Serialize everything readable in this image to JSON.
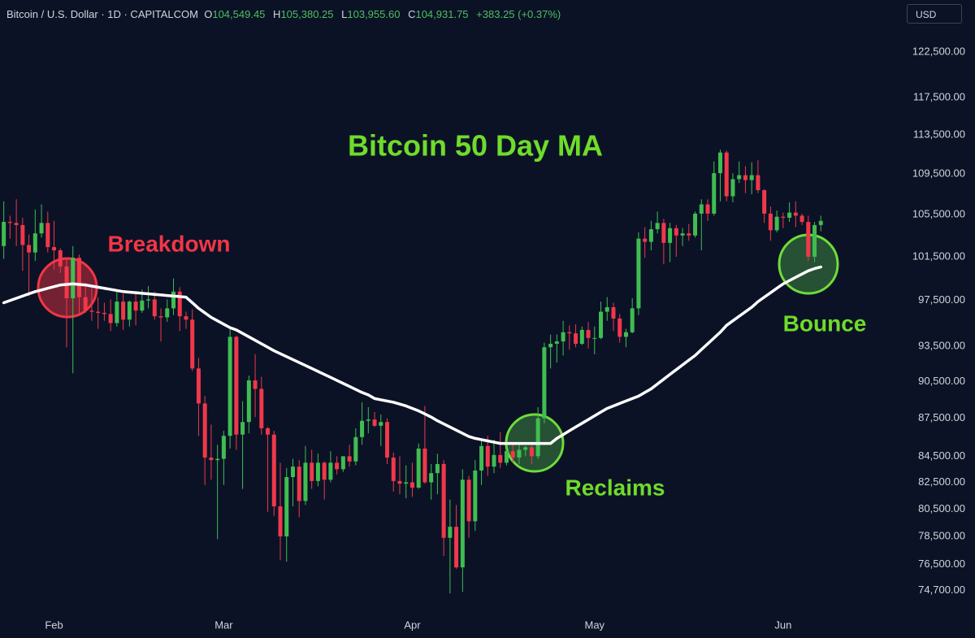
{
  "header": {
    "symbol": "Bitcoin / U.S. Dollar · 1D · CAPITALCOM",
    "ohlc": [
      {
        "key": "O",
        "value": "104,549.45"
      },
      {
        "key": "H",
        "value": "105,380.25"
      },
      {
        "key": "L",
        "value": "103,955.60"
      },
      {
        "key": "C",
        "value": "104,931.75"
      }
    ],
    "change": "+383.25 (+0.37%)",
    "currency": "USD"
  },
  "chart_data": {
    "type": "candlestick",
    "title": "Bitcoin 50 Day MA",
    "annotations": [
      "Breakdown",
      "Reclaims",
      "Bounce"
    ],
    "up_color": "#3fbd51",
    "down_color": "#f0384a",
    "ma_color": "#ffffff",
    "log_y": true,
    "ylim": [
      73400,
      128500
    ],
    "yticks": [
      {
        "value": 122500,
        "label": "122,500.00"
      },
      {
        "value": 117500,
        "label": "117,500.00"
      },
      {
        "value": 113500,
        "label": "113,500.00"
      },
      {
        "value": 109500,
        "label": "109,500.00"
      },
      {
        "value": 105500,
        "label": "105,500.00"
      },
      {
        "value": 101500,
        "label": "101,500.00"
      },
      {
        "value": 97500,
        "label": "97,500.00"
      },
      {
        "value": 93500,
        "label": "93,500.00"
      },
      {
        "value": 90500,
        "label": "90,500.00"
      },
      {
        "value": 87500,
        "label": "87,500.00"
      },
      {
        "value": 84500,
        "label": "84,500.00"
      },
      {
        "value": 82500,
        "label": "82,500.00"
      },
      {
        "value": 80500,
        "label": "80,500.00"
      },
      {
        "value": 78500,
        "label": "78,500.00"
      },
      {
        "value": 76500,
        "label": "76,500.00"
      },
      {
        "value": 74700,
        "label": "74,700.00"
      }
    ],
    "xlim": [
      -0.6,
      141.6
    ],
    "xticks": [
      {
        "value": 8,
        "label": "Feb"
      },
      {
        "value": 35,
        "label": "Mar"
      },
      {
        "value": 65,
        "label": "Apr"
      },
      {
        "value": 94,
        "label": "May"
      },
      {
        "value": 124,
        "label": "Jun"
      }
    ],
    "ohlc": [
      [
        102500,
        106800,
        101300,
        104800
      ],
      [
        104800,
        105400,
        103200,
        104700
      ],
      [
        104700,
        107000,
        102500,
        104500
      ],
      [
        104500,
        105200,
        100200,
        102600
      ],
      [
        102600,
        103600,
        97900,
        101900
      ],
      [
        101900,
        106000,
        101100,
        103700
      ],
      [
        103700,
        106500,
        103300,
        104700
      ],
      [
        104700,
        105800,
        101900,
        102400
      ],
      [
        102400,
        104900,
        100300,
        102100
      ],
      [
        102100,
        102300,
        100000,
        100600
      ],
      [
        100600,
        101400,
        93400,
        97700
      ],
      [
        97700,
        102500,
        91200,
        101400
      ],
      [
        101400,
        101700,
        96200,
        97800
      ],
      [
        97800,
        99100,
        96400,
        96600
      ],
      [
        96600,
        98800,
        95700,
        96500
      ],
      [
        96500,
        97800,
        95000,
        96400
      ],
      [
        96400,
        97300,
        95700,
        96300
      ],
      [
        96300,
        97600,
        94800,
        95500
      ],
      [
        95500,
        98500,
        95200,
        97400
      ],
      [
        97400,
        98100,
        94900,
        95800
      ],
      [
        95800,
        97500,
        95200,
        97400
      ],
      [
        97400,
        98100,
        95300,
        96600
      ],
      [
        96600,
        98500,
        96400,
        97500
      ],
      [
        97500,
        98800,
        96800,
        97600
      ],
      [
        97600,
        98300,
        95800,
        96100
      ],
      [
        96100,
        96800,
        93900,
        96000
      ],
      [
        96000,
        97600,
        95600,
        96800
      ],
      [
        96800,
        99500,
        96200,
        98300
      ],
      [
        98300,
        98700,
        94800,
        96100
      ],
      [
        96100,
        96500,
        95000,
        95800
      ],
      [
        95800,
        96700,
        91400,
        91600
      ],
      [
        91600,
        92500,
        86100,
        88700
      ],
      [
        88700,
        89300,
        82300,
        84400
      ],
      [
        84400,
        87000,
        82700,
        84200
      ],
      [
        84200,
        85400,
        78300,
        84300
      ],
      [
        84300,
        86500,
        82300,
        86100
      ],
      [
        86100,
        95000,
        85100,
        94300
      ],
      [
        94300,
        94400,
        85000,
        86200
      ],
      [
        86200,
        88900,
        82000,
        87200
      ],
      [
        87200,
        91000,
        86300,
        90600
      ],
      [
        90600,
        92800,
        87600,
        89900
      ],
      [
        89900,
        90900,
        86200,
        86700
      ],
      [
        86700,
        86800,
        80300,
        86200
      ],
      [
        86200,
        86500,
        80000,
        80700
      ],
      [
        80700,
        84000,
        76800,
        78500
      ],
      [
        78500,
        83600,
        76700,
        82900
      ],
      [
        82900,
        84300,
        80700,
        83700
      ],
      [
        83700,
        84200,
        79900,
        81100
      ],
      [
        81100,
        85300,
        80800,
        84000
      ],
      [
        84000,
        85000,
        82000,
        82600
      ],
      [
        82600,
        84700,
        82200,
        84000
      ],
      [
        84000,
        84100,
        81200,
        82700
      ],
      [
        82700,
        84900,
        82500,
        84000
      ],
      [
        84000,
        84500,
        83100,
        83500
      ],
      [
        83500,
        84500,
        83300,
        84500
      ],
      [
        84500,
        85400,
        83700,
        84100
      ],
      [
        84100,
        86700,
        83800,
        86000
      ],
      [
        86000,
        88800,
        85400,
        87300
      ],
      [
        87300,
        88400,
        86300,
        87400
      ],
      [
        87400,
        88000,
        86800,
        86900
      ],
      [
        86900,
        87800,
        85300,
        87200
      ],
      [
        87200,
        87500,
        83900,
        84400
      ],
      [
        84400,
        84800,
        81800,
        82600
      ],
      [
        82600,
        84500,
        81600,
        82400
      ],
      [
        82400,
        83800,
        81300,
        82500
      ],
      [
        82500,
        84000,
        81400,
        82100
      ],
      [
        82100,
        85500,
        82000,
        85100
      ],
      [
        85100,
        88500,
        82400,
        82500
      ],
      [
        82500,
        83900,
        81200,
        83200
      ],
      [
        83200,
        84700,
        81600,
        83900
      ],
      [
        83900,
        84200,
        77100,
        78400
      ],
      [
        78400,
        81200,
        74500,
        79200
      ],
      [
        79200,
        80800,
        76200,
        76300
      ],
      [
        76300,
        83500,
        74600,
        82700
      ],
      [
        82700,
        83000,
        78400,
        79600
      ],
      [
        79600,
        84200,
        78900,
        83400
      ],
      [
        83400,
        85800,
        82300,
        85300
      ],
      [
        85300,
        86100,
        83000,
        83700
      ],
      [
        83700,
        85800,
        83200,
        84600
      ],
      [
        84600,
        86400,
        83600,
        84000
      ],
      [
        84000,
        85400,
        83800,
        84900
      ],
      [
        84900,
        85500,
        84000,
        84400
      ],
      [
        84400,
        85400,
        83900,
        85000
      ],
      [
        85000,
        85300,
        84500,
        85200
      ],
      [
        85200,
        85600,
        83900,
        84500
      ],
      [
        84500,
        88400,
        84300,
        87500
      ],
      [
        87500,
        93800,
        87100,
        93400
      ],
      [
        93400,
        94500,
        91600,
        93700
      ],
      [
        93700,
        94500,
        92100,
        93900
      ],
      [
        93900,
        95700,
        92700,
        94700
      ],
      [
        94700,
        95300,
        93200,
        94600
      ],
      [
        94600,
        95400,
        93400,
        93700
      ],
      [
        93700,
        95200,
        93600,
        94900
      ],
      [
        94900,
        95600,
        93300,
        94200
      ],
      [
        94200,
        95200,
        92800,
        94200
      ],
      [
        94200,
        97400,
        94100,
        96500
      ],
      [
        96500,
        97800,
        95700,
        96900
      ],
      [
        96900,
        97300,
        94800,
        95900
      ],
      [
        95900,
        96300,
        93800,
        94300
      ],
      [
        94300,
        95000,
        93400,
        94700
      ],
      [
        94700,
        97700,
        94600,
        96800
      ],
      [
        96800,
        103800,
        96200,
        103200
      ],
      [
        103200,
        104300,
        101400,
        102900
      ],
      [
        102900,
        104900,
        102100,
        104100
      ],
      [
        104100,
        105800,
        103700,
        104700
      ],
      [
        104700,
        105100,
        100800,
        102800
      ],
      [
        102800,
        104700,
        101000,
        104200
      ],
      [
        104200,
        104500,
        101500,
        103500
      ],
      [
        103500,
        104200,
        102500,
        103700
      ],
      [
        103700,
        104600,
        103000,
        103500
      ],
      [
        103500,
        105800,
        103300,
        105600
      ],
      [
        105600,
        107000,
        102100,
        106500
      ],
      [
        106500,
        107000,
        104900,
        105600
      ],
      [
        105600,
        110800,
        105400,
        109600
      ],
      [
        109600,
        112000,
        106800,
        111700
      ],
      [
        111700,
        111900,
        106800,
        107300
      ],
      [
        107300,
        109600,
        106700,
        109000
      ],
      [
        109000,
        110800,
        108600,
        109400
      ],
      [
        109400,
        110300,
        107600,
        108900
      ],
      [
        108900,
        110700,
        107500,
        109400
      ],
      [
        109400,
        110900,
        107600,
        107900
      ],
      [
        107900,
        108000,
        104700,
        105600
      ],
      [
        105600,
        106300,
        103000,
        104000
      ],
      [
        104000,
        105900,
        103800,
        105300
      ],
      [
        105300,
        105700,
        104200,
        105200
      ],
      [
        105200,
        106700,
        104800,
        105700
      ],
      [
        105700,
        106800,
        104300,
        105400
      ],
      [
        105400,
        105600,
        104500,
        104800
      ],
      [
        104800,
        105400,
        101100,
        101500
      ],
      [
        101500,
        104800,
        101000,
        104500
      ],
      [
        104500,
        105400,
        103900,
        104900
      ]
    ],
    "ma_values": [
      97300,
      97500,
      97700,
      97900,
      98100,
      98300,
      98450,
      98600,
      98750,
      98900,
      98950,
      99000,
      98950,
      98900,
      98800,
      98700,
      98600,
      98500,
      98400,
      98300,
      98250,
      98200,
      98150,
      98100,
      98050,
      98000,
      97950,
      97900,
      97850,
      97800,
      97300,
      96800,
      96400,
      96000,
      95700,
      95400,
      95100,
      94900,
      94600,
      94300,
      94000,
      93700,
      93400,
      93100,
      92850,
      92600,
      92350,
      92100,
      91850,
      91600,
      91350,
      91100,
      90850,
      90600,
      90350,
      90100,
      89850,
      89600,
      89400,
      89100,
      89000,
      88900,
      88800,
      88650,
      88500,
      88300,
      88100,
      87850,
      87600,
      87300,
      87050,
      86800,
      86550,
      86300,
      86050,
      85900,
      85800,
      85700,
      85600,
      85500,
      85500,
      85500,
      85500,
      85500,
      85500,
      85500,
      85500,
      85500,
      85900,
      86200,
      86500,
      86800,
      87100,
      87400,
      87700,
      88000,
      88300,
      88500,
      88700,
      88900,
      89100,
      89300,
      89600,
      89900,
      90300,
      90700,
      91100,
      91500,
      91900,
      92300,
      92700,
      93200,
      93700,
      94200,
      94700,
      95300,
      95700,
      96100,
      96500,
      96900,
      97400,
      97800,
      98200,
      98600,
      99000,
      99300,
      99600,
      99900,
      100200,
      100400,
      100550
    ]
  }
}
